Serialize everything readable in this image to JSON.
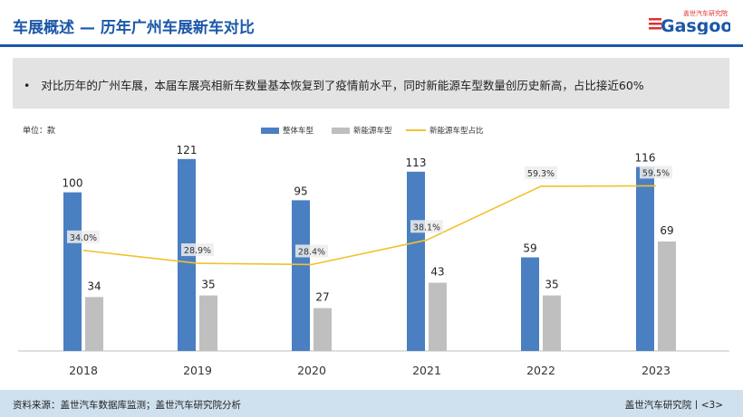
{
  "header": {
    "title": "车展概述 — 历年广州车展新车对比",
    "logo_brand": "盖世汽车研究院",
    "logo_word": "Gasgoo"
  },
  "summary": {
    "bullet": "•",
    "text": "对比历年的广州车展，本届车展亮相新车数量基本恢复到了疫情前水平，同时新能源车型数量创历史新高，占比接近60%"
  },
  "colors": {
    "accent": "#1a57a8",
    "total_bar": "#4a7fc1",
    "nev_bar": "#bfbfbf",
    "share_line": "#f2c12e",
    "footer_bg": "#cfe1ef"
  },
  "chart_data": {
    "type": "bar",
    "unit_label": "单位：款",
    "categories": [
      "2018",
      "2019",
      "2020",
      "2021",
      "2022",
      "2023"
    ],
    "series": [
      {
        "name": "整体车型",
        "values": [
          100,
          121,
          95,
          113,
          59,
          116
        ]
      },
      {
        "name": "新能源车型",
        "values": [
          34,
          35,
          27,
          43,
          35,
          69
        ]
      }
    ],
    "line_series": {
      "name": "新能源车型占比",
      "values": [
        34.0,
        28.9,
        28.4,
        38.1,
        59.3,
        59.5
      ],
      "labels": [
        "34.0%",
        "28.9%",
        "28.4%",
        "38.1%",
        "59.3%",
        "59.5%"
      ]
    },
    "legend_position": "top-center",
    "grid": false
  },
  "footer": {
    "source": "资料来源：盖世汽车数据库监测；盖世汽车研究院分析",
    "page": "盖世汽车研究院丨<3>"
  }
}
